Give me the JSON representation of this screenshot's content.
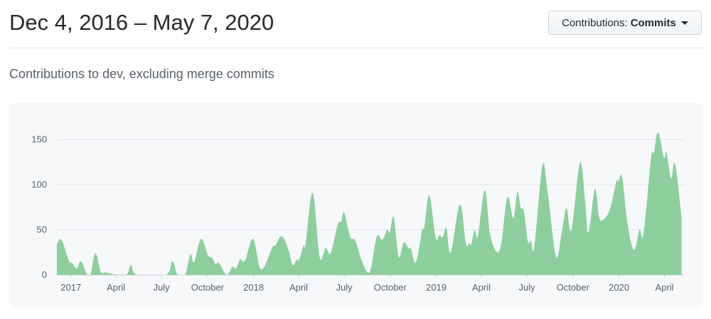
{
  "header": {
    "title": "Dec 4, 2016 – May 7, 2020",
    "dropdown_prefix": "Contributions:",
    "dropdown_value": "Commits"
  },
  "subtitle": "Contributions to dev, excluding merge commits",
  "chart_data": {
    "type": "area",
    "color": "#8ccf9c",
    "grid": true,
    "ylim": [
      0,
      160
    ],
    "yticks": [
      0,
      50,
      100,
      150
    ],
    "xlim": [
      "2016-12-04",
      "2020-05-07"
    ],
    "xticks": [
      {
        "date": "2017-01-01",
        "label": "2017"
      },
      {
        "date": "2017-04-01",
        "label": "April"
      },
      {
        "date": "2017-07-01",
        "label": "July"
      },
      {
        "date": "2017-10-01",
        "label": "October"
      },
      {
        "date": "2018-01-01",
        "label": "2018"
      },
      {
        "date": "2018-04-01",
        "label": "April"
      },
      {
        "date": "2018-07-01",
        "label": "July"
      },
      {
        "date": "2018-10-01",
        "label": "October"
      },
      {
        "date": "2019-01-01",
        "label": "2019"
      },
      {
        "date": "2019-04-01",
        "label": "April"
      },
      {
        "date": "2019-07-01",
        "label": "July"
      },
      {
        "date": "2019-10-01",
        "label": "October"
      },
      {
        "date": "2020-01-01",
        "label": "2020"
      },
      {
        "date": "2020-04-01",
        "label": "April"
      }
    ],
    "points": [
      [
        "2016-12-04",
        34
      ],
      [
        "2016-12-13",
        39
      ],
      [
        "2016-12-28",
        16
      ],
      [
        "2017-01-04",
        13
      ],
      [
        "2017-01-13",
        7
      ],
      [
        "2017-01-21",
        15
      ],
      [
        "2017-02-03",
        0
      ],
      [
        "2017-02-09",
        0
      ],
      [
        "2017-02-19",
        24
      ],
      [
        "2017-03-02",
        3
      ],
      [
        "2017-03-12",
        3
      ],
      [
        "2017-03-23",
        1
      ],
      [
        "2017-04-21",
        0
      ],
      [
        "2017-05-01",
        11
      ],
      [
        "2017-05-13",
        0
      ],
      [
        "2017-07-09",
        0
      ],
      [
        "2017-07-23",
        15
      ],
      [
        "2017-08-02",
        0
      ],
      [
        "2017-08-17",
        0
      ],
      [
        "2017-08-28",
        23
      ],
      [
        "2017-09-04",
        14
      ],
      [
        "2017-09-18",
        40
      ],
      [
        "2017-10-02",
        22
      ],
      [
        "2017-10-10",
        19
      ],
      [
        "2017-10-17",
        12
      ],
      [
        "2017-10-24",
        13
      ],
      [
        "2017-11-08",
        0
      ],
      [
        "2017-11-20",
        9
      ],
      [
        "2017-11-27",
        7
      ],
      [
        "2017-12-05",
        17
      ],
      [
        "2017-12-15",
        16
      ],
      [
        "2017-12-31",
        40
      ],
      [
        "2018-01-16",
        6
      ],
      [
        "2018-02-07",
        30
      ],
      [
        "2018-02-14",
        33
      ],
      [
        "2018-02-26",
        43
      ],
      [
        "2018-03-11",
        29
      ],
      [
        "2018-03-20",
        11
      ],
      [
        "2018-03-28",
        17
      ],
      [
        "2018-04-02",
        17
      ],
      [
        "2018-04-11",
        33
      ],
      [
        "2018-04-15",
        34
      ],
      [
        "2018-04-29",
        91
      ],
      [
        "2018-05-13",
        20
      ],
      [
        "2018-05-25",
        30
      ],
      [
        "2018-06-04",
        24
      ],
      [
        "2018-06-18",
        56
      ],
      [
        "2018-06-25",
        59
      ],
      [
        "2018-07-01",
        69
      ],
      [
        "2018-07-13",
        42
      ],
      [
        "2018-07-23",
        38
      ],
      [
        "2018-08-07",
        13
      ],
      [
        "2018-08-21",
        3
      ],
      [
        "2018-09-04",
        42
      ],
      [
        "2018-09-15",
        39
      ],
      [
        "2018-09-25",
        50
      ],
      [
        "2018-09-30",
        47
      ],
      [
        "2018-10-08",
        64
      ],
      [
        "2018-10-18",
        20
      ],
      [
        "2018-10-28",
        36
      ],
      [
        "2018-11-07",
        29
      ],
      [
        "2018-11-11",
        30
      ],
      [
        "2018-11-21",
        14
      ],
      [
        "2018-12-04",
        50
      ],
      [
        "2018-12-08",
        52
      ],
      [
        "2018-12-18",
        88
      ],
      [
        "2018-12-31",
        41
      ],
      [
        "2019-01-07",
        44
      ],
      [
        "2019-01-14",
        42
      ],
      [
        "2019-01-21",
        52
      ],
      [
        "2019-01-30",
        25
      ],
      [
        "2019-02-17",
        78
      ],
      [
        "2019-03-01",
        35
      ],
      [
        "2019-03-08",
        35
      ],
      [
        "2019-03-12",
        34
      ],
      [
        "2019-03-19",
        50
      ],
      [
        "2019-03-25",
        43
      ],
      [
        "2019-04-08",
        94
      ],
      [
        "2019-04-18",
        47
      ],
      [
        "2019-05-01",
        26
      ],
      [
        "2019-05-11",
        35
      ],
      [
        "2019-05-23",
        86
      ],
      [
        "2019-06-04",
        63
      ],
      [
        "2019-06-12",
        92
      ],
      [
        "2019-06-19",
        74
      ],
      [
        "2019-06-25",
        71
      ],
      [
        "2019-07-03",
        37
      ],
      [
        "2019-07-09",
        38
      ],
      [
        "2019-07-16",
        32
      ],
      [
        "2019-08-01",
        121
      ],
      [
        "2019-08-11",
        94
      ],
      [
        "2019-08-28",
        21
      ],
      [
        "2019-09-08",
        45
      ],
      [
        "2019-09-18",
        74
      ],
      [
        "2019-09-28",
        50
      ],
      [
        "2019-10-15",
        124
      ],
      [
        "2019-10-25",
        84
      ],
      [
        "2019-11-01",
        47
      ],
      [
        "2019-11-14",
        95
      ],
      [
        "2019-11-22",
        65
      ],
      [
        "2019-11-30",
        61
      ],
      [
        "2019-12-14",
        73
      ],
      [
        "2019-12-27",
        104
      ],
      [
        "2019-12-31",
        103
      ],
      [
        "2020-01-07",
        109
      ],
      [
        "2020-01-18",
        57
      ],
      [
        "2020-01-31",
        28
      ],
      [
        "2020-02-11",
        50
      ],
      [
        "2020-02-19",
        46
      ],
      [
        "2020-03-05",
        129
      ],
      [
        "2020-03-11",
        136
      ],
      [
        "2020-03-19",
        158
      ],
      [
        "2020-03-31",
        130
      ],
      [
        "2020-04-05",
        136
      ],
      [
        "2020-04-14",
        107
      ],
      [
        "2020-04-22",
        123
      ],
      [
        "2020-05-05",
        64
      ]
    ]
  }
}
